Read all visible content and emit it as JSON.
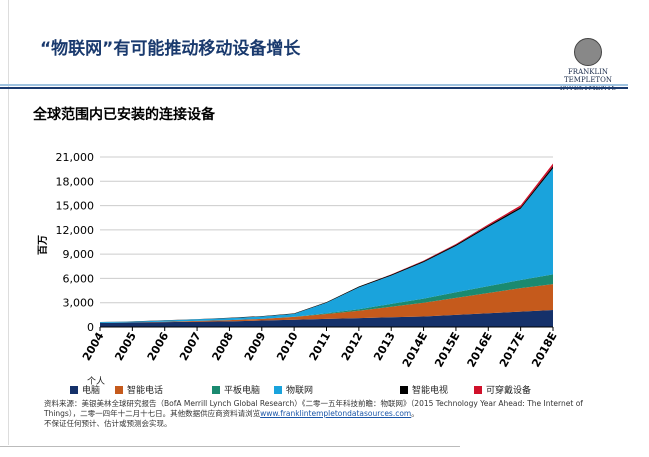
{
  "header": {
    "title": "“物联网”有可能推动移动设备增长",
    "logo_line1": "FRANKLIN TEMPLETON",
    "logo_line2": "INVESTMENTS"
  },
  "subtitle": "全球范围内已安装的连接设备",
  "colors": {
    "pc": "#15316a",
    "smartphone": "#c55a1c",
    "tablet": "#1a8a70",
    "iot": "#1aa3dc",
    "tv": "#000000",
    "wearable": "#d0102a"
  },
  "legend": [
    {
      "label": "电脑",
      "prefix": "个人"
    },
    {
      "label": "智能电话"
    },
    {
      "label": "平板电脑"
    },
    {
      "label": "物联网"
    },
    {
      "label": "智能电视"
    },
    {
      "label": "可穿戴设备"
    }
  ],
  "source": {
    "text1": "资料来源：美银美林全球研究报告（BofA Merrill Lynch Global Research）《二零一五年科技前瞻：物联网》（2015 Technology Year Ahead: The Internet of Things），二零一四年十二月十七日。其他数据供应商资料请浏览",
    "link": "www.franklintempletondatasources.com",
    "text2": "。",
    "disclaimer": "不保证任何预计、估计或预测会实现。"
  },
  "chart_data": {
    "type": "area",
    "stacked": true,
    "title": "全球范围内已安装的连接设备",
    "xlabel": "",
    "ylabel": "百万",
    "ylim": [
      0,
      21000
    ],
    "yticks": [
      0,
      3000,
      6000,
      9000,
      12000,
      15000,
      18000,
      21000
    ],
    "ytick_labels": [
      "0",
      "3,000",
      "6,000",
      "9,000",
      "12,000",
      "15,000",
      "18,000",
      "21,000"
    ],
    "categories": [
      "2004",
      "2005",
      "2006",
      "2007",
      "2008",
      "2009",
      "2010",
      "2011",
      "2012",
      "2013",
      "2014E",
      "2015E",
      "2016E",
      "2017E",
      "2018E"
    ],
    "grid": true,
    "series": [
      {
        "name": "个人电脑",
        "key": "pc",
        "values": [
          500,
          550,
          600,
          650,
          700,
          800,
          900,
          1000,
          1100,
          1200,
          1300,
          1500,
          1700,
          1900,
          2100
        ]
      },
      {
        "name": "智能电话",
        "key": "smartphone",
        "values": [
          0,
          20,
          50,
          100,
          150,
          200,
          350,
          600,
          900,
          1300,
          1700,
          2100,
          2500,
          2900,
          3200
        ]
      },
      {
        "name": "平板电脑",
        "key": "tablet",
        "values": [
          0,
          0,
          0,
          0,
          0,
          0,
          20,
          100,
          200,
          350,
          500,
          700,
          850,
          1000,
          1200
        ]
      },
      {
        "name": "物联网",
        "key": "iot",
        "values": [
          100,
          100,
          150,
          200,
          250,
          300,
          350,
          1300,
          2700,
          3500,
          4500,
          5700,
          7300,
          8800,
          13100
        ]
      },
      {
        "name": "智能电视",
        "key": "tv",
        "values": [
          20,
          20,
          30,
          30,
          40,
          50,
          60,
          80,
          100,
          120,
          140,
          160,
          180,
          200,
          250
        ]
      },
      {
        "name": "可穿戴设备",
        "key": "wearable",
        "values": [
          0,
          0,
          0,
          0,
          0,
          0,
          0,
          0,
          10,
          30,
          60,
          100,
          150,
          220,
          350
        ]
      }
    ]
  }
}
